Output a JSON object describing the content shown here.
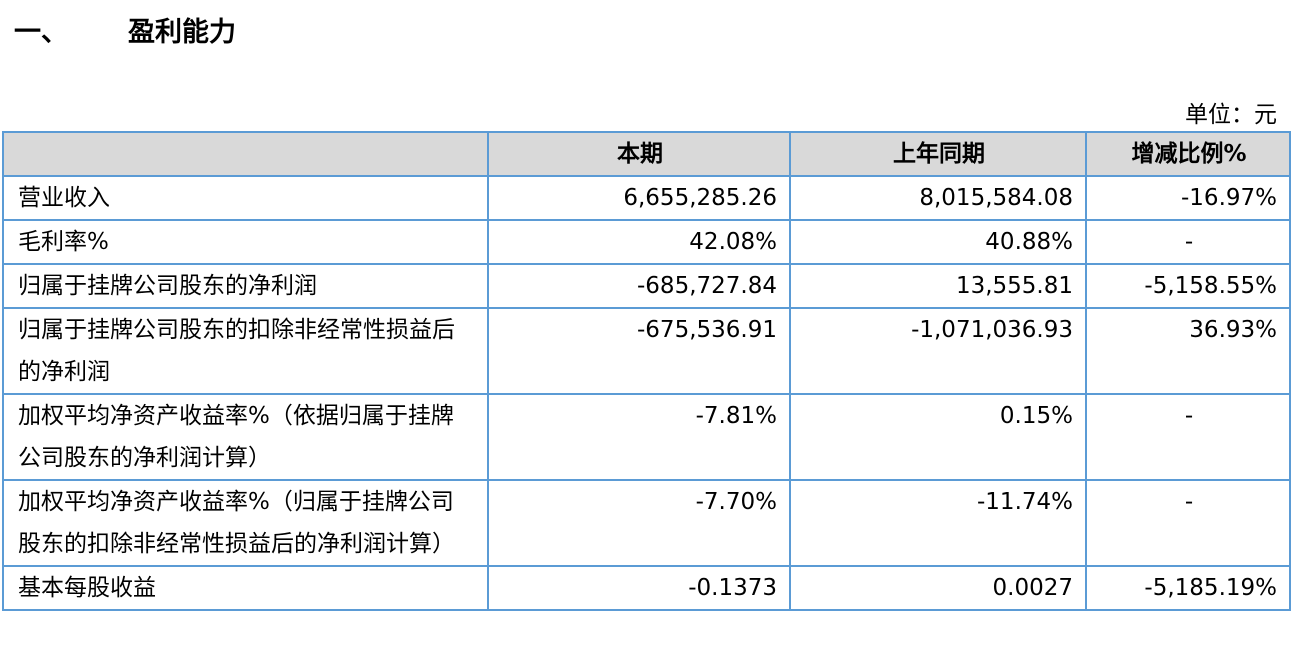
{
  "section": {
    "number": "一、",
    "title": "盈利能力"
  },
  "unit_label": "单位：元",
  "table": {
    "headers": [
      "",
      "本期",
      "上年同期",
      "增减比例%"
    ],
    "rows": [
      {
        "label": "营业收入",
        "current": "6,655,285.26",
        "prior": "8,015,584.08",
        "change": "-16.97%"
      },
      {
        "label": "毛利率%",
        "current": "42.08%",
        "prior": "40.88%",
        "change": "-"
      },
      {
        "label": "归属于挂牌公司股东的净利润",
        "current": "-685,727.84",
        "prior": "13,555.81",
        "change": "-5,158.55%"
      },
      {
        "label": "归属于挂牌公司股东的扣除非经常性损益后的净利润",
        "current": "-675,536.91",
        "prior": "-1,071,036.93",
        "change": "36.93%"
      },
      {
        "label": "加权平均净资产收益率%（依据归属于挂牌公司股东的净利润计算）",
        "current": "-7.81%",
        "prior": "0.15%",
        "change": "-"
      },
      {
        "label": "加权平均净资产收益率%（归属于挂牌公司股东的扣除非经常性损益后的净利润计算）",
        "current": "-7.70%",
        "prior": "-11.74%",
        "change": "-"
      },
      {
        "label": "基本每股收益",
        "current": "-0.1373",
        "prior": "0.0027",
        "change": "-5,185.19%"
      }
    ]
  }
}
